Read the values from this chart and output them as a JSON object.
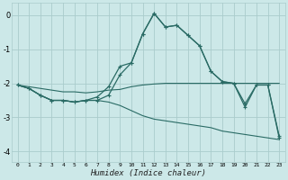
{
  "xlabel": "Humidex (Indice chaleur)",
  "bg_color": "#cce8e8",
  "grid_color": "#aacccc",
  "line_color": "#2a6b65",
  "xlim": [
    -0.5,
    23.5
  ],
  "ylim": [
    -4.3,
    0.35
  ],
  "yticks": [
    0,
    -1,
    -2,
    -3,
    -4
  ],
  "xticks": [
    0,
    1,
    2,
    3,
    4,
    5,
    6,
    7,
    8,
    9,
    10,
    11,
    12,
    13,
    14,
    15,
    16,
    17,
    18,
    19,
    20,
    21,
    22,
    23
  ],
  "line1_x": [
    0,
    1,
    2,
    3,
    4,
    5,
    6,
    7,
    8,
    9,
    10,
    11,
    12,
    13,
    14,
    15,
    16,
    17,
    18,
    19,
    20,
    21,
    22,
    23
  ],
  "line1_y": [
    -2.05,
    -2.1,
    -2.15,
    -2.2,
    -2.25,
    -2.25,
    -2.28,
    -2.25,
    -2.2,
    -2.18,
    -2.1,
    -2.05,
    -2.02,
    -2.0,
    -2.0,
    -2.0,
    -2.0,
    -2.0,
    -2.0,
    -2.0,
    -2.0,
    -2.0,
    -2.0,
    -2.0
  ],
  "line2_x": [
    0,
    1,
    2,
    3,
    4,
    5,
    6,
    7,
    8,
    9,
    10,
    11,
    12,
    13,
    14,
    15,
    16,
    17,
    18,
    19,
    20,
    21,
    22,
    23
  ],
  "line2_y": [
    -2.05,
    -2.15,
    -2.35,
    -2.5,
    -2.5,
    -2.55,
    -2.5,
    -2.5,
    -2.35,
    -1.75,
    -1.4,
    -0.55,
    0.05,
    -0.35,
    -0.3,
    -0.6,
    -0.9,
    -1.65,
    -1.95,
    -2.0,
    -2.6,
    -2.05,
    -2.05,
    -3.6
  ],
  "line3_x": [
    0,
    1,
    2,
    3,
    4,
    5,
    6,
    7,
    8,
    9,
    10,
    11,
    12,
    13,
    14,
    15,
    16,
    17,
    18,
    19,
    20,
    21,
    22,
    23
  ],
  "line3_y": [
    -2.05,
    -2.15,
    -2.35,
    -2.5,
    -2.5,
    -2.55,
    -2.5,
    -2.5,
    -2.55,
    -2.65,
    -2.8,
    -2.95,
    -3.05,
    -3.1,
    -3.15,
    -3.2,
    -3.25,
    -3.3,
    -3.4,
    -3.45,
    -3.5,
    -3.55,
    -3.6,
    -3.65
  ],
  "line4_x": [
    0,
    1,
    2,
    3,
    4,
    5,
    6,
    7,
    8,
    9,
    10,
    11,
    12,
    13,
    14,
    15,
    16,
    17,
    18,
    19,
    20,
    21,
    22,
    23
  ],
  "line4_y": [
    -2.05,
    -2.15,
    -2.35,
    -2.5,
    -2.5,
    -2.55,
    -2.5,
    -2.4,
    -2.1,
    -1.5,
    -1.4,
    -0.55,
    0.05,
    -0.35,
    -0.3,
    -0.6,
    -0.9,
    -1.65,
    -1.95,
    -2.0,
    -2.7,
    -2.05,
    -2.05,
    -3.55
  ]
}
